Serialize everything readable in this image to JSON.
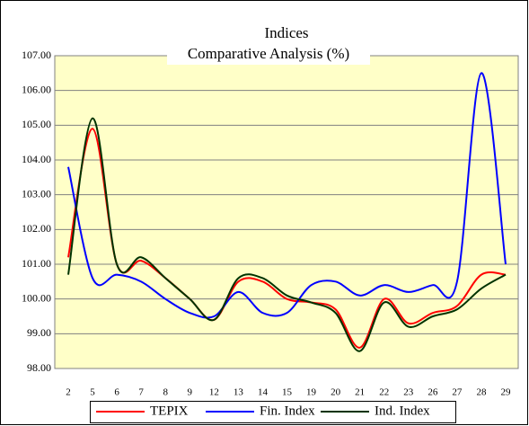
{
  "chart_data": {
    "type": "line",
    "title": "Indices",
    "subtitle": "Comparative Analysis (%)",
    "categories": [
      "2",
      "5",
      "6",
      "7",
      "8",
      "9",
      "12",
      "13",
      "14",
      "15",
      "19",
      "20",
      "21",
      "22",
      "23",
      "26",
      "27",
      "28",
      "29"
    ],
    "series": [
      {
        "name": "TEPIX",
        "color": "#ff0000",
        "values": [
          101.2,
          104.9,
          101.0,
          101.1,
          100.6,
          100.0,
          99.4,
          100.5,
          100.5,
          100.0,
          99.9,
          99.7,
          98.6,
          100.0,
          99.3,
          99.6,
          99.8,
          100.7,
          100.7
        ]
      },
      {
        "name": "Fin. Index",
        "color": "#0000ff",
        "values": [
          103.8,
          100.6,
          100.7,
          100.5,
          100.0,
          99.6,
          99.5,
          100.2,
          99.6,
          99.6,
          100.4,
          100.5,
          100.1,
          100.4,
          100.2,
          100.4,
          100.5,
          106.5,
          101.0
        ]
      },
      {
        "name": "Ind. Index",
        "color": "#003300",
        "values": [
          100.7,
          105.2,
          101.0,
          101.2,
          100.6,
          100.0,
          99.4,
          100.6,
          100.6,
          100.1,
          99.9,
          99.6,
          98.5,
          99.9,
          99.2,
          99.5,
          99.7,
          100.3,
          100.7
        ]
      }
    ],
    "ylim": [
      98,
      107
    ],
    "yticks": [
      {
        "value": 98,
        "label": "98.00"
      },
      {
        "value": 99,
        "label": "99.00"
      },
      {
        "value": 100,
        "label": "100.00"
      },
      {
        "value": 101,
        "label": "101.00"
      },
      {
        "value": 102,
        "label": "102.00"
      },
      {
        "value": 103,
        "label": "103.00"
      },
      {
        "value": 104,
        "label": "104.00"
      },
      {
        "value": 105,
        "label": "105.00"
      },
      {
        "value": 106,
        "label": "106.00"
      },
      {
        "value": 107,
        "label": "107.00"
      }
    ],
    "grid": true,
    "legend": "bottom"
  }
}
